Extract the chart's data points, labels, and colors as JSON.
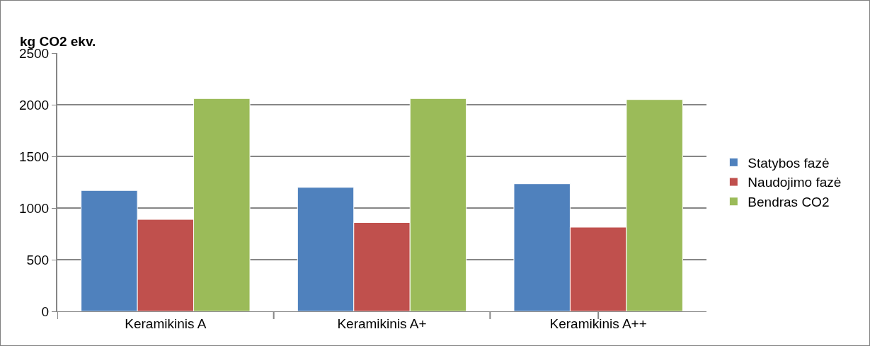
{
  "chart_data": {
    "type": "bar",
    "ylabel": "kg CO2 ekv.",
    "categories": [
      "Keramikinis A",
      "Keramikinis A+",
      "Keramikinis A++"
    ],
    "series": [
      {
        "name": "Statybos fazė",
        "color": "#4f81bd",
        "values": [
          1170,
          1200,
          1235
        ]
      },
      {
        "name": "Naudojimo fazė",
        "color": "#c0504d",
        "values": [
          890,
          860,
          815
        ]
      },
      {
        "name": "Bendras CO2",
        "color": "#9bbb59",
        "values": [
          2060,
          2060,
          2050
        ]
      }
    ],
    "ylim": [
      0,
      2500
    ],
    "yticks": [
      0,
      500,
      1000,
      1500,
      2000,
      2500
    ],
    "grid": "y",
    "legend": "right"
  }
}
